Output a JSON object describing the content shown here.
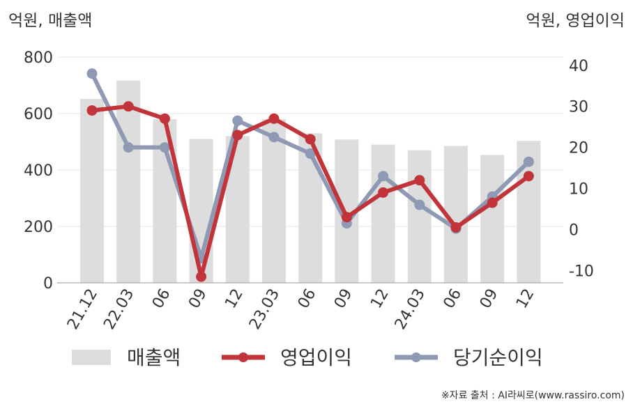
{
  "chart_data": {
    "type": "bar+line",
    "left_axis_title": "억원, 매출액",
    "right_axis_title": "억원, 영업이익",
    "categories": [
      "21.12",
      "22.03",
      "06",
      "09",
      "12",
      "23.03",
      "06",
      "09",
      "12",
      "24.03",
      "06",
      "09",
      "12"
    ],
    "left_axis": {
      "min": 0,
      "max": 800,
      "ticks": [
        0,
        200,
        400,
        600,
        800
      ]
    },
    "right_axis": {
      "min": -13,
      "max": 42,
      "ticks": [
        -10,
        0,
        10,
        20,
        30,
        40
      ]
    },
    "series": [
      {
        "name": "매출액",
        "kind": "bar",
        "axis": "left",
        "color": "#dddddd",
        "values": [
          652,
          717,
          580,
          510,
          520,
          580,
          530,
          508,
          490,
          470,
          485,
          453,
          503
        ]
      },
      {
        "name": "영업이익",
        "kind": "line",
        "axis": "right",
        "color": "#c1343a",
        "values": [
          29,
          30,
          27,
          -11.5,
          23,
          27,
          22,
          3,
          9,
          12,
          0.5,
          6.5,
          13
        ]
      },
      {
        "name": "당기순이익",
        "kind": "line",
        "axis": "right",
        "color": "#8e99b3",
        "values": [
          38,
          20,
          20,
          -7,
          26.5,
          22.5,
          18.5,
          1.5,
          13,
          6,
          0.2,
          8,
          16.5
        ]
      }
    ],
    "grid": true,
    "legend_position": "bottom"
  },
  "source_note": "※자료 출처 : AI라씨로(www.rassiro.com)"
}
